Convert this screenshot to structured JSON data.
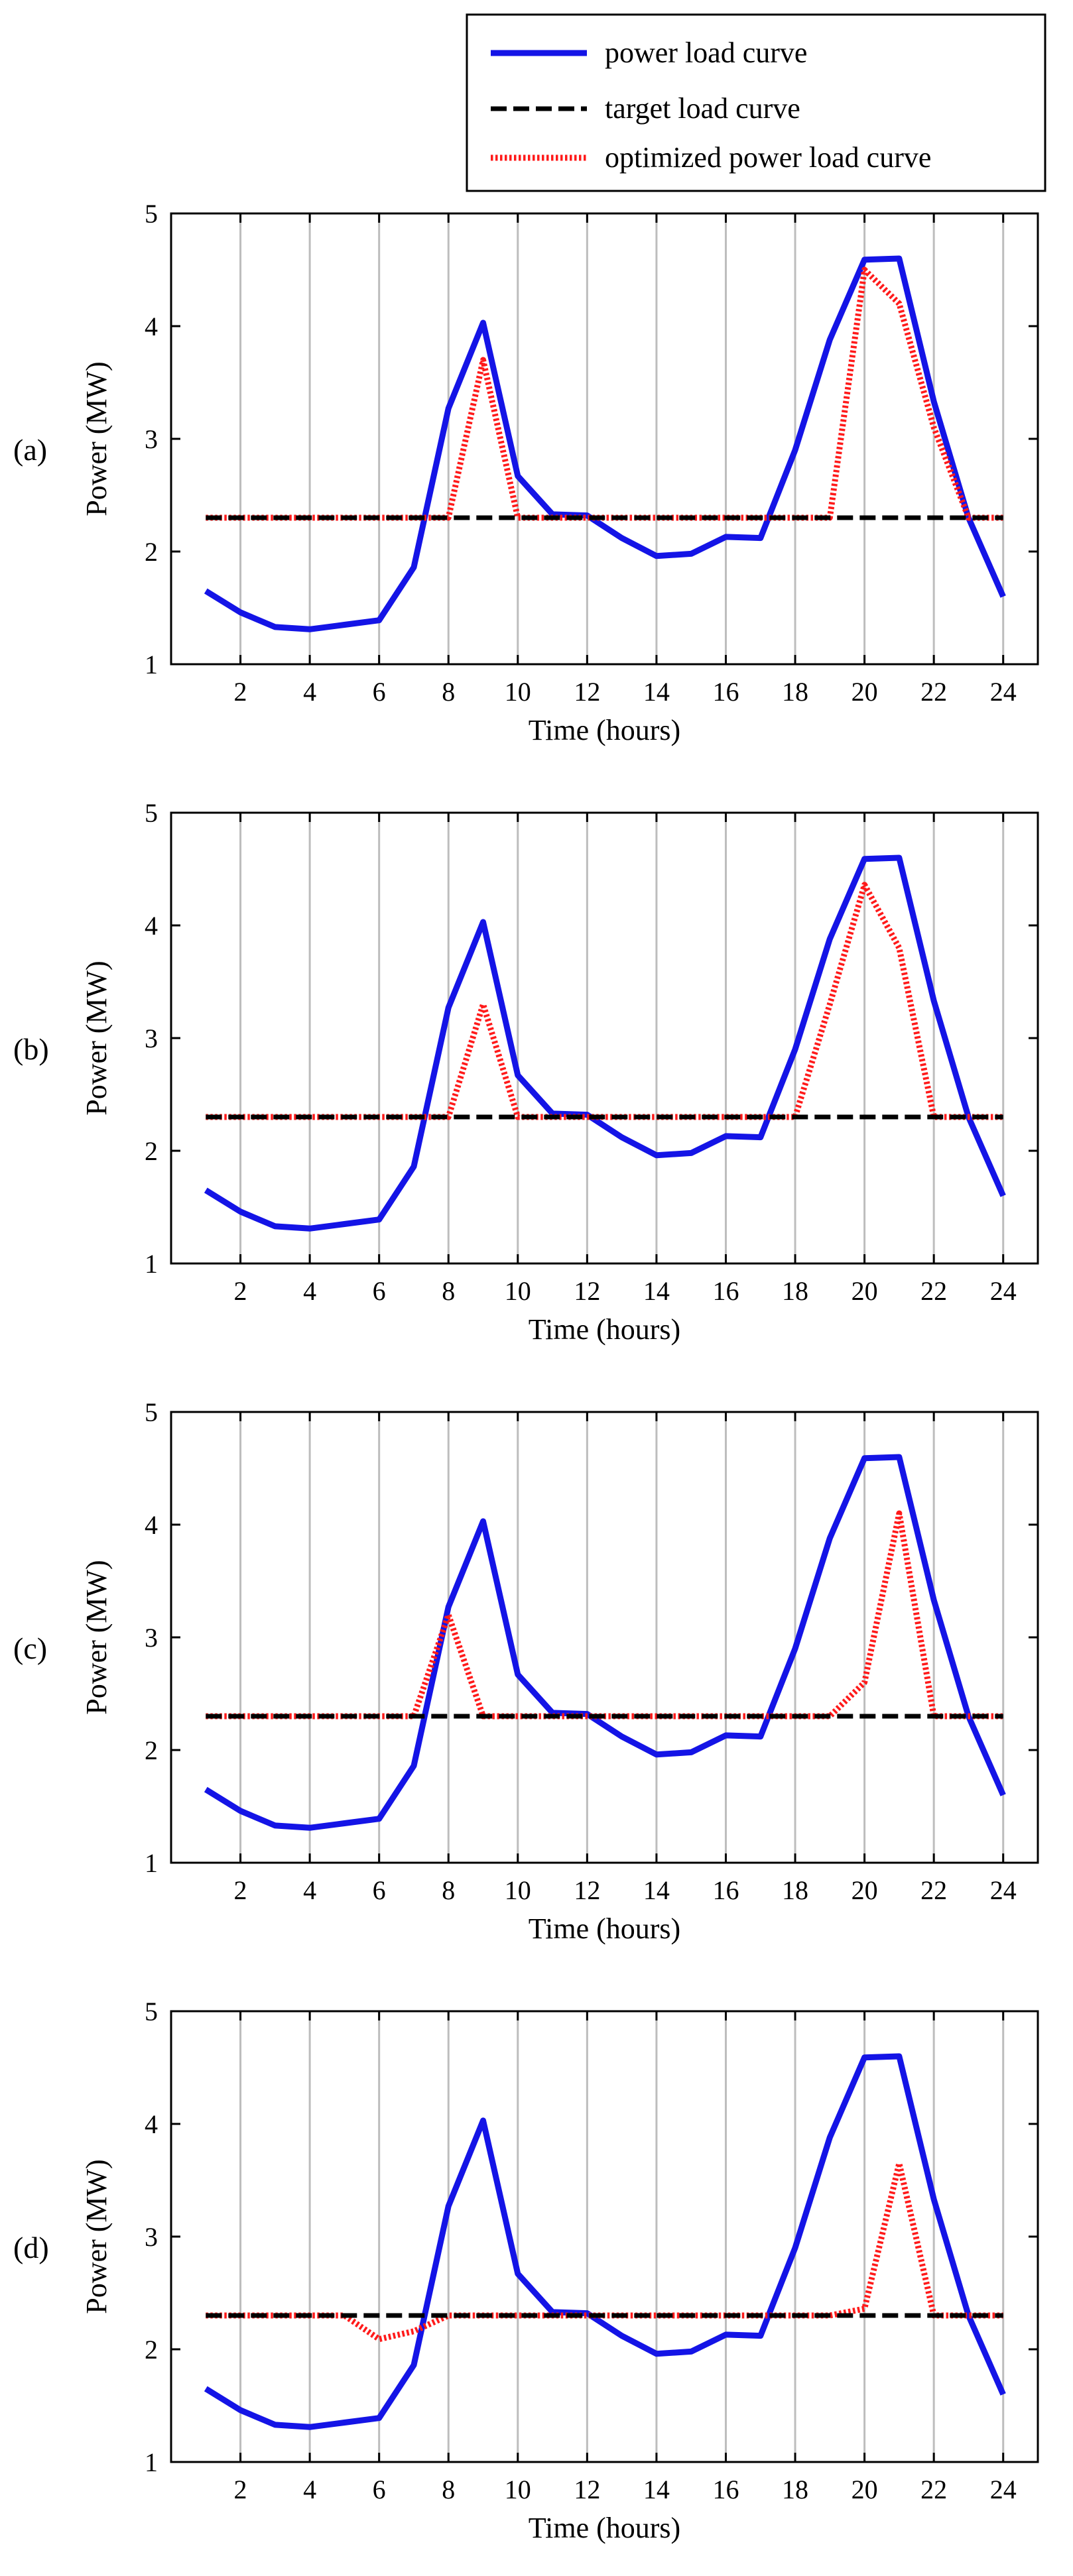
{
  "figure": {
    "legend": {
      "entries": [
        {
          "label": "power load curve",
          "color": "#1414e6",
          "style": "solid"
        },
        {
          "label": "target load curve",
          "color": "#000000",
          "style": "dashed"
        },
        {
          "label": "optimized power load curve",
          "color": "#ff1a1a",
          "style": "dotted"
        }
      ]
    }
  },
  "chart_data": [
    {
      "type": "line",
      "panel_label": "(a)",
      "xlabel": "Time (hours)",
      "ylabel": "Power (MW)",
      "xlim": [
        0,
        25
      ],
      "ylim": [
        1,
        5
      ],
      "xticks": [
        2,
        4,
        6,
        8,
        10,
        12,
        14,
        16,
        18,
        20,
        22,
        24
      ],
      "yticks": [
        1,
        2,
        3,
        4,
        5
      ],
      "grid": "vertical",
      "x": [
        1,
        2,
        3,
        4,
        5,
        6,
        7,
        8,
        9,
        10,
        11,
        12,
        13,
        14,
        15,
        16,
        17,
        18,
        19,
        20,
        21,
        22,
        23,
        24
      ],
      "series": [
        {
          "name": "power load curve",
          "values": [
            1.65,
            1.46,
            1.33,
            1.31,
            1.35,
            1.39,
            1.86,
            3.27,
            4.03,
            2.67,
            2.33,
            2.32,
            2.12,
            1.96,
            1.98,
            2.13,
            2.12,
            2.9,
            3.88,
            4.59,
            4.6,
            3.33,
            2.3,
            1.6
          ]
        },
        {
          "name": "target load curve",
          "values": [
            2.3,
            2.3,
            2.3,
            2.3,
            2.3,
            2.3,
            2.3,
            2.3,
            2.3,
            2.3,
            2.3,
            2.3,
            2.3,
            2.3,
            2.3,
            2.3,
            2.3,
            2.3,
            2.3,
            2.3,
            2.3,
            2.3,
            2.3,
            2.3
          ]
        },
        {
          "name": "optimized power load curve",
          "values": [
            2.3,
            2.3,
            2.3,
            2.3,
            2.3,
            2.3,
            2.3,
            2.3,
            3.7,
            2.3,
            2.3,
            2.3,
            2.3,
            2.3,
            2.3,
            2.3,
            2.3,
            2.3,
            2.3,
            4.5,
            4.2,
            3.1,
            2.3,
            2.3
          ]
        }
      ]
    },
    {
      "type": "line",
      "panel_label": "(b)",
      "xlabel": "Time (hours)",
      "ylabel": "Power (MW)",
      "xlim": [
        0,
        25
      ],
      "ylim": [
        1,
        5
      ],
      "xticks": [
        2,
        4,
        6,
        8,
        10,
        12,
        14,
        16,
        18,
        20,
        22,
        24
      ],
      "yticks": [
        1,
        2,
        3,
        4,
        5
      ],
      "grid": "vertical",
      "x": [
        1,
        2,
        3,
        4,
        5,
        6,
        7,
        8,
        9,
        10,
        11,
        12,
        13,
        14,
        15,
        16,
        17,
        18,
        19,
        20,
        21,
        22,
        23,
        24
      ],
      "series": [
        {
          "name": "power load curve",
          "values": [
            1.65,
            1.46,
            1.33,
            1.31,
            1.35,
            1.39,
            1.86,
            3.27,
            4.03,
            2.67,
            2.33,
            2.32,
            2.12,
            1.96,
            1.98,
            2.13,
            2.12,
            2.9,
            3.88,
            4.59,
            4.6,
            3.33,
            2.3,
            1.6
          ]
        },
        {
          "name": "target load curve",
          "values": [
            2.3,
            2.3,
            2.3,
            2.3,
            2.3,
            2.3,
            2.3,
            2.3,
            2.3,
            2.3,
            2.3,
            2.3,
            2.3,
            2.3,
            2.3,
            2.3,
            2.3,
            2.3,
            2.3,
            2.3,
            2.3,
            2.3,
            2.3,
            2.3
          ]
        },
        {
          "name": "optimized power load curve",
          "values": [
            2.3,
            2.3,
            2.3,
            2.3,
            2.3,
            2.3,
            2.3,
            2.3,
            3.3,
            2.3,
            2.3,
            2.3,
            2.3,
            2.3,
            2.3,
            2.3,
            2.3,
            2.3,
            3.3,
            4.36,
            3.8,
            2.3,
            2.3,
            2.3
          ]
        }
      ]
    },
    {
      "type": "line",
      "panel_label": "(c)",
      "xlabel": "Time (hours)",
      "ylabel": "Power (MW)",
      "xlim": [
        0,
        25
      ],
      "ylim": [
        1,
        5
      ],
      "xticks": [
        2,
        4,
        6,
        8,
        10,
        12,
        14,
        16,
        18,
        20,
        22,
        24
      ],
      "yticks": [
        1,
        2,
        3,
        4,
        5
      ],
      "grid": "vertical",
      "x": [
        1,
        2,
        3,
        4,
        5,
        6,
        7,
        8,
        9,
        10,
        11,
        12,
        13,
        14,
        15,
        16,
        17,
        18,
        19,
        20,
        21,
        22,
        23,
        24
      ],
      "series": [
        {
          "name": "power load curve",
          "values": [
            1.65,
            1.46,
            1.33,
            1.31,
            1.35,
            1.39,
            1.86,
            3.27,
            4.03,
            2.67,
            2.33,
            2.32,
            2.12,
            1.96,
            1.98,
            2.13,
            2.12,
            2.9,
            3.88,
            4.59,
            4.6,
            3.33,
            2.3,
            1.6
          ]
        },
        {
          "name": "target load curve",
          "values": [
            2.3,
            2.3,
            2.3,
            2.3,
            2.3,
            2.3,
            2.3,
            2.3,
            2.3,
            2.3,
            2.3,
            2.3,
            2.3,
            2.3,
            2.3,
            2.3,
            2.3,
            2.3,
            2.3,
            2.3,
            2.3,
            2.3,
            2.3,
            2.3
          ]
        },
        {
          "name": "optimized power load curve",
          "values": [
            2.3,
            2.3,
            2.3,
            2.3,
            2.3,
            2.3,
            2.3,
            3.2,
            2.3,
            2.3,
            2.3,
            2.3,
            2.3,
            2.3,
            2.3,
            2.3,
            2.3,
            2.3,
            2.3,
            2.6,
            4.1,
            2.3,
            2.3,
            2.3
          ]
        }
      ]
    },
    {
      "type": "line",
      "panel_label": "(d)",
      "xlabel": "Time (hours)",
      "ylabel": "Power (MW)",
      "xlim": [
        0,
        25
      ],
      "ylim": [
        1,
        5
      ],
      "xticks": [
        2,
        4,
        6,
        8,
        10,
        12,
        14,
        16,
        18,
        20,
        22,
        24
      ],
      "yticks": [
        1,
        2,
        3,
        4,
        5
      ],
      "grid": "vertical",
      "x": [
        1,
        2,
        3,
        4,
        5,
        6,
        7,
        8,
        9,
        10,
        11,
        12,
        13,
        14,
        15,
        16,
        17,
        18,
        19,
        20,
        21,
        22,
        23,
        24
      ],
      "series": [
        {
          "name": "power load curve",
          "values": [
            1.65,
            1.46,
            1.33,
            1.31,
            1.35,
            1.39,
            1.86,
            3.27,
            4.03,
            2.67,
            2.33,
            2.32,
            2.12,
            1.96,
            1.98,
            2.13,
            2.12,
            2.9,
            3.88,
            4.59,
            4.6,
            3.33,
            2.3,
            1.6
          ]
        },
        {
          "name": "target load curve",
          "values": [
            2.3,
            2.3,
            2.3,
            2.3,
            2.3,
            2.3,
            2.3,
            2.3,
            2.3,
            2.3,
            2.3,
            2.3,
            2.3,
            2.3,
            2.3,
            2.3,
            2.3,
            2.3,
            2.3,
            2.3,
            2.3,
            2.3,
            2.3,
            2.3
          ]
        },
        {
          "name": "optimized power load curve",
          "values": [
            2.3,
            2.3,
            2.3,
            2.3,
            2.3,
            2.09,
            2.16,
            2.3,
            2.3,
            2.3,
            2.3,
            2.3,
            2.3,
            2.3,
            2.3,
            2.3,
            2.3,
            2.3,
            2.3,
            2.36,
            3.65,
            2.3,
            2.3,
            2.3
          ]
        }
      ]
    }
  ]
}
